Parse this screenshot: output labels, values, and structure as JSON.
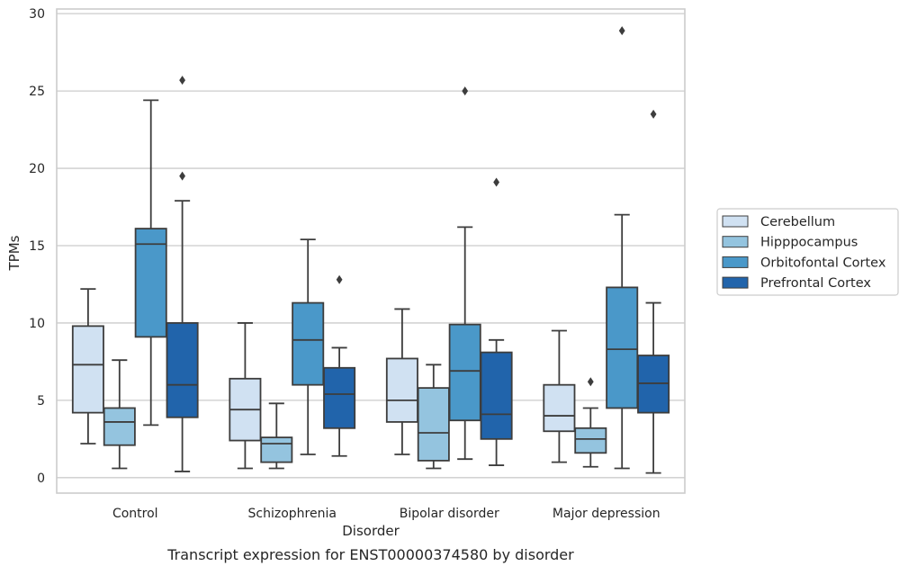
{
  "chart_data": {
    "type": "boxplot",
    "title": "",
    "caption": "Transcript expression for ENST00000374580 by disorder",
    "xlabel": "Disorder",
    "ylabel": "TPMs",
    "ylim": [
      -1,
      30.3
    ],
    "yticks": [
      "0",
      "5",
      "10",
      "15",
      "20",
      "25",
      "30"
    ],
    "grid": "horizontal",
    "legend_position": "right",
    "categories": [
      "Control",
      "Schizophrenia",
      "Bipolar disorder",
      "Major depression"
    ],
    "series": [
      {
        "name": "Cerebellum",
        "color": "#d0e1f2",
        "boxes": [
          {
            "whislo": 2.2,
            "q1": 4.2,
            "med": 7.3,
            "q3": 9.8,
            "whishi": 12.2,
            "fliers": []
          },
          {
            "whislo": 0.6,
            "q1": 2.4,
            "med": 4.4,
            "q3": 6.4,
            "whishi": 10.0,
            "fliers": []
          },
          {
            "whislo": 1.5,
            "q1": 3.6,
            "med": 5.0,
            "q3": 7.7,
            "whishi": 10.9,
            "fliers": []
          },
          {
            "whislo": 1.0,
            "q1": 3.0,
            "med": 4.0,
            "q3": 6.0,
            "whishi": 9.5,
            "fliers": []
          }
        ]
      },
      {
        "name": "Hipppocampus",
        "color": "#94c4df",
        "boxes": [
          {
            "whislo": 0.6,
            "q1": 2.1,
            "med": 3.6,
            "q3": 4.5,
            "whishi": 7.6,
            "fliers": []
          },
          {
            "whislo": 0.6,
            "q1": 1.0,
            "med": 2.2,
            "q3": 2.6,
            "whishi": 4.8,
            "fliers": []
          },
          {
            "whislo": 0.6,
            "q1": 1.1,
            "med": 2.9,
            "q3": 5.8,
            "whishi": 7.3,
            "fliers": []
          },
          {
            "whislo": 0.7,
            "q1": 1.6,
            "med": 2.5,
            "q3": 3.2,
            "whishi": 4.5,
            "fliers": [
              6.2
            ]
          }
        ]
      },
      {
        "name": "Orbitofontal Cortex",
        "color": "#4a98c9",
        "boxes": [
          {
            "whislo": 3.4,
            "q1": 9.1,
            "med": 15.1,
            "q3": 16.1,
            "whishi": 24.4,
            "fliers": []
          },
          {
            "whislo": 1.5,
            "q1": 6.0,
            "med": 8.9,
            "q3": 11.3,
            "whishi": 15.4,
            "fliers": []
          },
          {
            "whislo": 1.2,
            "q1": 3.7,
            "med": 6.9,
            "q3": 9.9,
            "whishi": 16.2,
            "fliers": [
              25.0
            ]
          },
          {
            "whislo": 0.6,
            "q1": 4.5,
            "med": 8.3,
            "q3": 12.3,
            "whishi": 17.0,
            "fliers": [
              28.9
            ]
          }
        ]
      },
      {
        "name": "Prefrontal Cortex",
        "color": "#2164ab",
        "boxes": [
          {
            "whislo": 0.4,
            "q1": 3.9,
            "med": 6.0,
            "q3": 10.0,
            "whishi": 17.9,
            "fliers": [
              19.5,
              25.7
            ]
          },
          {
            "whislo": 1.4,
            "q1": 3.2,
            "med": 5.4,
            "q3": 7.1,
            "whishi": 8.4,
            "fliers": [
              12.8
            ]
          },
          {
            "whislo": 0.8,
            "q1": 2.5,
            "med": 4.1,
            "q3": 8.1,
            "whishi": 8.9,
            "fliers": [
              19.1
            ]
          },
          {
            "whislo": 0.3,
            "q1": 4.2,
            "med": 6.1,
            "q3": 7.9,
            "whishi": 11.3,
            "fliers": [
              23.5
            ]
          }
        ]
      }
    ]
  }
}
